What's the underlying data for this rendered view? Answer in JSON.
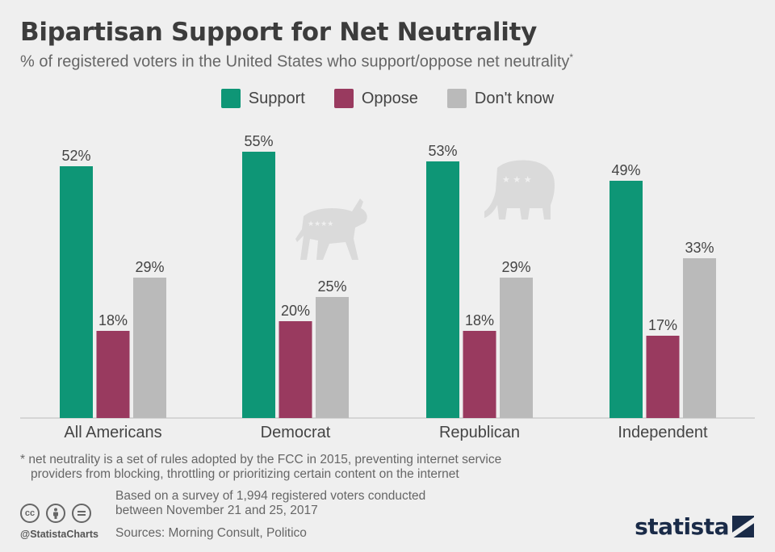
{
  "header": {
    "title": "Bipartisan Support for Net Neutrality",
    "subtitle": "% of registered voters in the United States who support/oppose net neutrality",
    "subtitle_mark": "*"
  },
  "legend": [
    {
      "label": "Support",
      "color": "#0e9676"
    },
    {
      "label": "Oppose",
      "color": "#993a5f"
    },
    {
      "label": "Don't know",
      "color": "#bababa"
    }
  ],
  "chart_data": {
    "type": "bar",
    "title": "Bipartisan Support for Net Neutrality",
    "xlabel": "",
    "ylabel": "",
    "ylim": [
      0,
      60
    ],
    "grid": false,
    "legend_position": "top-center",
    "categories": [
      "All Americans",
      "Democrat",
      "Republican",
      "Independent"
    ],
    "series": [
      {
        "name": "Support",
        "values": [
          52,
          55,
          53,
          49
        ],
        "labels": [
          "52%",
          "55%",
          "53%",
          "49%"
        ]
      },
      {
        "name": "Oppose",
        "values": [
          18,
          20,
          18,
          17
        ],
        "labels": [
          "18%",
          "20%",
          "18%",
          "17%"
        ]
      },
      {
        "name": "Don't know",
        "values": [
          29,
          25,
          29,
          33
        ],
        "labels": [
          "29%",
          "25%",
          "29%",
          "33%"
        ]
      }
    ],
    "colors": [
      "#0e9676",
      "#993a5f",
      "#bababa"
    ]
  },
  "decorations": {
    "donkey_icon": "donkey-icon",
    "elephant_icon": "elephant-icon",
    "icon_color": "#dadada"
  },
  "footer": {
    "footnote_line1": "* net neutrality is a set of rules adopted by the FCC in 2015, preventing internet service",
    "footnote_line2": "providers from blocking, throttling or prioritizing certain content on the internet",
    "survey_line1": "Based on a survey of 1,994 registered voters conducted",
    "survey_line2": "between November 21 and 25, 2017",
    "sources": "Sources: Morning Consult, Politico",
    "handle": "@StatistaCharts",
    "brand": "statista",
    "license_icons": [
      "cc-icon",
      "by-icon",
      "nd-icon"
    ]
  }
}
